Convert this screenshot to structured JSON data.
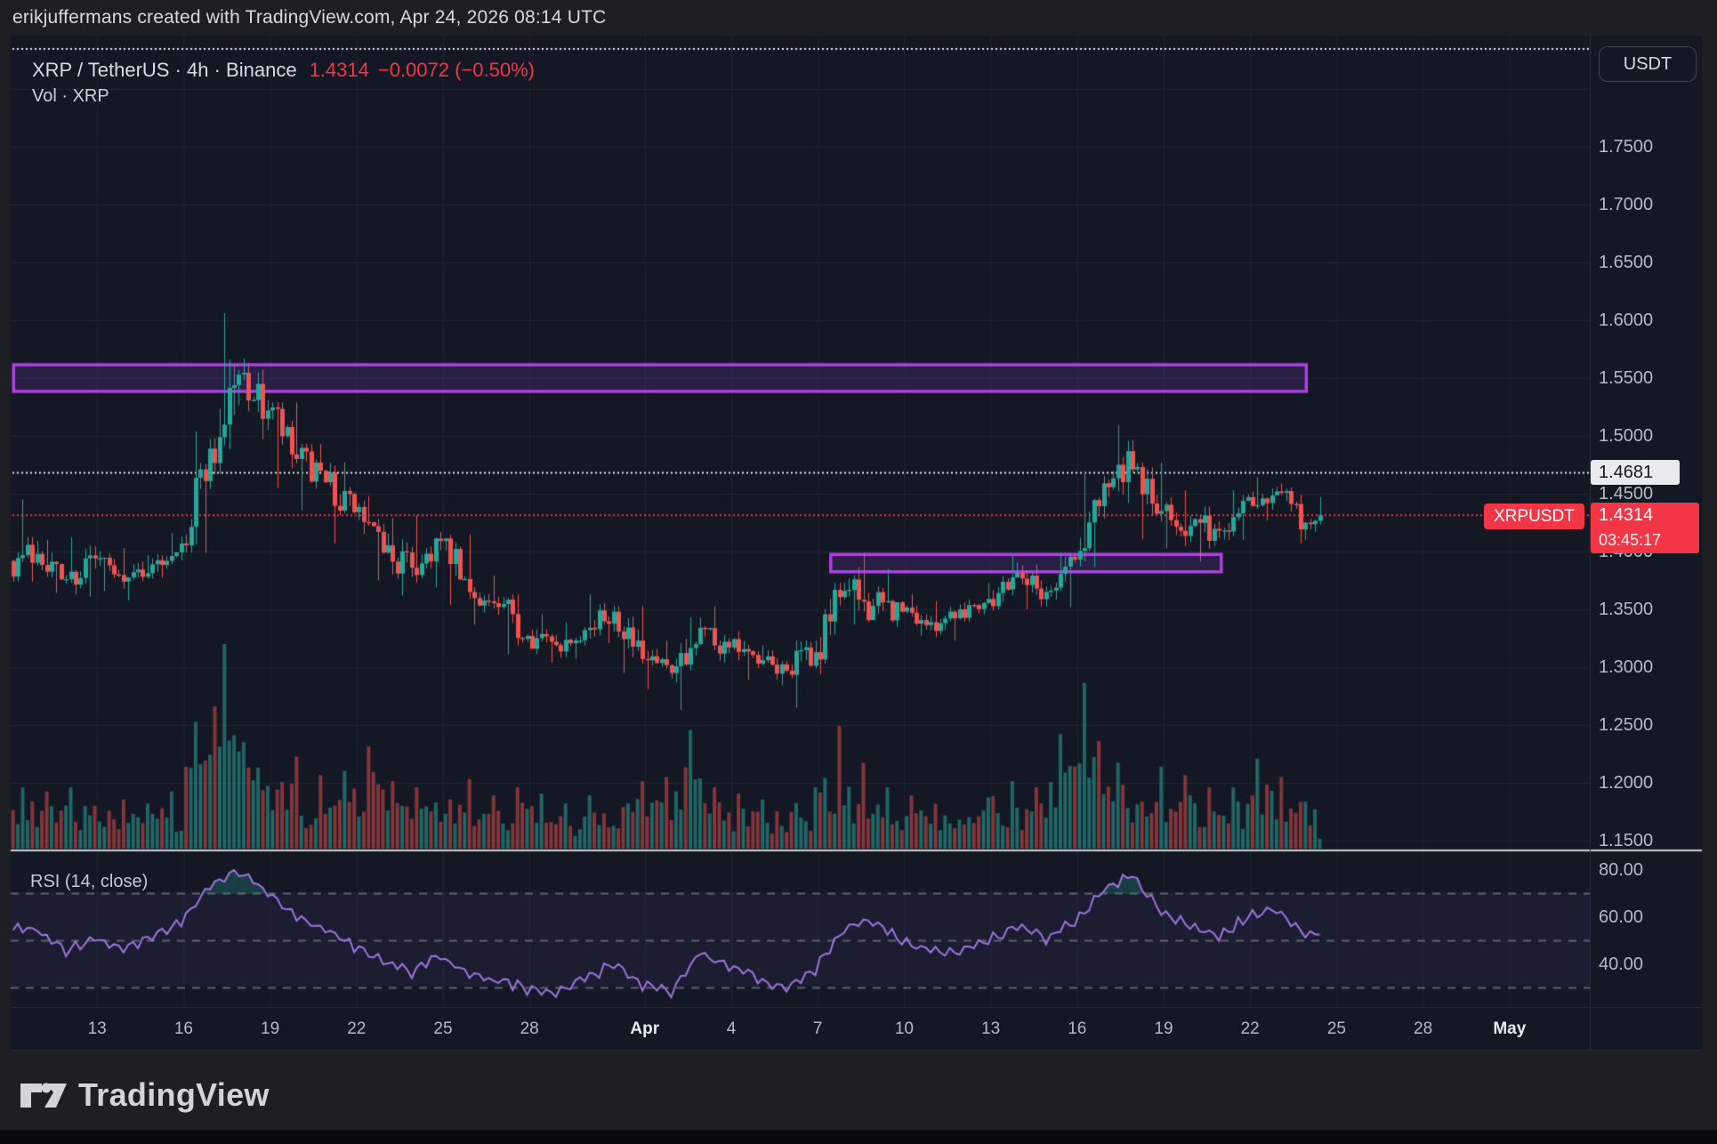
{
  "attribution": {
    "text": "erikjuffermans created with TradingView.com, Apr 24, 2026 08:14 UTC"
  },
  "legend": {
    "symbol_line": "XRP / TetherUS · 4h · Binance",
    "price": "1.4314",
    "change": "−0.0072 (−0.50%)",
    "volume_label": "Vol · XRP"
  },
  "currency_button": {
    "label": "USDT"
  },
  "rsi_panel": {
    "legend": "RSI (14, close)"
  },
  "footer": {
    "logo_text": "TradingView"
  },
  "colors": {
    "bg": "#141824",
    "outer_bg": "#1d1f24",
    "grid": "#1e2433",
    "up": "#26a69a",
    "down": "#ef5350",
    "vol_up": "rgba(42,167,154,0.55)",
    "vol_down": "rgba(239,83,80,0.50)",
    "accent_red": "#f23645",
    "white_line": "#e8e9ef",
    "rect_border": "#b13fe3",
    "rect_fill": "rgba(140,60,210,0.18)",
    "rsi_line": "#9d74e0",
    "rsi_band_fill": "rgba(126,87,194,0.08)",
    "rsi_dash": "#5f636e",
    "rsi_ob_fill": "rgba(38,166,154,0.28)",
    "separator": "#cdd0d6",
    "pane_border": "#2a2e39"
  },
  "chart_data": {
    "type": "candlestick",
    "symbol": "XRPUSDT",
    "exchange": "Binance",
    "interval": "4h",
    "last_price": 1.4314,
    "change": -0.0072,
    "change_pct": -0.5,
    "price_ticks": [
      {
        "label": "1.7500",
        "value": 1.75
      },
      {
        "label": "1.7000",
        "value": 1.7
      },
      {
        "label": "1.6500",
        "value": 1.65
      },
      {
        "label": "1.6000",
        "value": 1.6
      },
      {
        "label": "1.5500",
        "value": 1.55
      },
      {
        "label": "1.5000",
        "value": 1.5
      },
      {
        "label": "1.4500",
        "value": 1.45
      },
      {
        "label": "1.4000",
        "value": 1.4
      },
      {
        "label": "1.3500",
        "value": 1.35
      },
      {
        "label": "1.3000",
        "value": 1.3
      },
      {
        "label": "1.2500",
        "value": 1.25
      },
      {
        "label": "1.2000",
        "value": 1.2
      },
      {
        "label": "1.1500",
        "value": 1.15
      }
    ],
    "grid_price_values": [
      1.8,
      1.75,
      1.7,
      1.65,
      1.6,
      1.55,
      1.5,
      1.45,
      1.4,
      1.35,
      1.3,
      1.25,
      1.2,
      1.15
    ],
    "time_axis_labels": [
      {
        "label": "13",
        "day": 3
      },
      {
        "label": "16",
        "day": 6
      },
      {
        "label": "19",
        "day": 9
      },
      {
        "label": "22",
        "day": 12
      },
      {
        "label": "25",
        "day": 15
      },
      {
        "label": "28",
        "day": 18
      },
      {
        "label": "Apr",
        "day": 22,
        "bold": true
      },
      {
        "label": "4",
        "day": 25
      },
      {
        "label": "7",
        "day": 28
      },
      {
        "label": "10",
        "day": 31
      },
      {
        "label": "13",
        "day": 34
      },
      {
        "label": "16",
        "day": 37
      },
      {
        "label": "19",
        "day": 40
      },
      {
        "label": "22",
        "day": 43
      },
      {
        "label": "25",
        "day": 46
      },
      {
        "label": "28",
        "day": 49
      },
      {
        "label": "May",
        "day": 52,
        "bold": true
      }
    ],
    "days": [
      [
        "Mar 10",
        1.392,
        1.445,
        1.374,
        1.398,
        0.3
      ],
      [
        "Mar 11",
        1.398,
        1.41,
        1.364,
        1.376,
        0.28
      ],
      [
        "Mar 12",
        1.376,
        1.412,
        1.361,
        1.394,
        0.3
      ],
      [
        "Mar 13",
        1.394,
        1.403,
        1.366,
        1.374,
        0.24
      ],
      [
        "Mar 14",
        1.374,
        1.397,
        1.358,
        1.389,
        0.22
      ],
      [
        "Mar 15",
        1.389,
        1.416,
        1.377,
        1.407,
        0.28
      ],
      [
        "Mar 16",
        1.407,
        1.504,
        1.399,
        1.489,
        0.62
      ],
      [
        "Mar 17",
        1.489,
        1.606,
        1.467,
        1.553,
        1.0
      ],
      [
        "Mar 18",
        1.553,
        1.567,
        1.497,
        1.522,
        0.52
      ],
      [
        "Mar 19",
        1.522,
        1.529,
        1.455,
        1.48,
        0.45
      ],
      [
        "Mar 20",
        1.48,
        1.493,
        1.436,
        1.46,
        0.36
      ],
      [
        "Mar 21",
        1.46,
        1.477,
        1.407,
        1.434,
        0.38
      ],
      [
        "Mar 22",
        1.434,
        1.448,
        1.375,
        1.399,
        0.5
      ],
      [
        "Mar 23",
        1.399,
        1.429,
        1.362,
        1.386,
        0.33
      ],
      [
        "Mar 24",
        1.386,
        1.431,
        1.369,
        1.409,
        0.3
      ],
      [
        "Mar 25",
        1.409,
        1.415,
        1.354,
        1.365,
        0.34
      ],
      [
        "Mar 26",
        1.365,
        1.379,
        1.337,
        1.352,
        0.26
      ],
      [
        "Mar 27",
        1.352,
        1.363,
        1.311,
        1.327,
        0.3
      ],
      [
        "Mar 28",
        1.327,
        1.346,
        1.304,
        1.319,
        0.27
      ],
      [
        "Mar 29",
        1.319,
        1.339,
        1.307,
        1.332,
        0.22
      ],
      [
        "Mar 30",
        1.332,
        1.363,
        1.321,
        1.348,
        0.26
      ],
      [
        "Mar 31",
        1.348,
        1.353,
        1.295,
        1.307,
        0.33
      ],
      [
        "Apr 1",
        1.307,
        1.323,
        1.281,
        1.295,
        0.35
      ],
      [
        "Apr 2",
        1.295,
        1.343,
        1.263,
        1.334,
        0.58
      ],
      [
        "Apr 3",
        1.334,
        1.353,
        1.304,
        1.317,
        0.3
      ],
      [
        "Apr 4",
        1.317,
        1.331,
        1.289,
        1.303,
        0.27
      ],
      [
        "Apr 5",
        1.303,
        1.319,
        1.284,
        1.297,
        0.24
      ],
      [
        "Apr 6",
        1.297,
        1.323,
        1.265,
        1.313,
        0.3
      ],
      [
        "Apr 7",
        1.313,
        1.373,
        1.294,
        1.366,
        0.6
      ],
      [
        "Apr 8",
        1.366,
        1.399,
        1.337,
        1.353,
        0.42
      ],
      [
        "Apr 9",
        1.353,
        1.385,
        1.335,
        1.348,
        0.3
      ],
      [
        "Apr 10",
        1.348,
        1.363,
        1.327,
        1.339,
        0.26
      ],
      [
        "Apr 11",
        1.339,
        1.357,
        1.323,
        1.35,
        0.22
      ],
      [
        "Apr 12",
        1.35,
        1.373,
        1.339,
        1.359,
        0.25
      ],
      [
        "Apr 13",
        1.359,
        1.397,
        1.349,
        1.382,
        0.33
      ],
      [
        "Apr 14",
        1.382,
        1.389,
        1.35,
        1.365,
        0.3
      ],
      [
        "Apr 15",
        1.365,
        1.399,
        1.352,
        1.393,
        0.56
      ],
      [
        "Apr 16",
        1.393,
        1.469,
        1.387,
        1.459,
        0.81
      ],
      [
        "Apr 17",
        1.459,
        1.509,
        1.442,
        1.471,
        0.42
      ],
      [
        "Apr 18",
        1.471,
        1.477,
        1.411,
        1.435,
        0.4
      ],
      [
        "Apr 19",
        1.435,
        1.453,
        1.403,
        1.422,
        0.36
      ],
      [
        "Apr 20",
        1.422,
        1.439,
        1.391,
        1.418,
        0.3
      ],
      [
        "Apr 21",
        1.418,
        1.453,
        1.41,
        1.447,
        0.3
      ],
      [
        "Apr 22",
        1.447,
        1.464,
        1.427,
        1.452,
        0.44
      ],
      [
        "Apr 23",
        1.452,
        1.459,
        1.407,
        1.425,
        0.35
      ],
      [
        "Apr 24",
        1.425,
        1.447,
        1.417,
        1.4314,
        0.26
      ]
    ],
    "rsi": {
      "period": 14,
      "source": "close",
      "ticks": [
        {
          "label": "80.00",
          "value": 80
        },
        {
          "label": "60.00",
          "value": 60
        },
        {
          "label": "40.00",
          "value": 40
        }
      ],
      "levels": [
        70,
        50,
        30
      ],
      "daily_values": [
        55,
        46,
        51,
        46,
        52,
        58,
        73,
        80,
        70,
        60,
        55,
        48,
        41,
        37,
        44,
        35,
        33,
        30,
        28,
        34,
        40,
        31,
        28,
        45,
        39,
        34,
        30,
        38,
        56,
        58,
        50,
        46,
        45,
        50,
        56,
        51,
        58,
        72,
        78,
        62,
        57,
        52,
        60,
        63,
        53,
        52
      ]
    },
    "rectangles": [
      {
        "from_day": 0.1,
        "to_day": 44.95,
        "price_top": 1.5615,
        "price_bottom": 1.5385
      },
      {
        "from_day": 28.45,
        "to_day": 42.0,
        "price_top": 1.3975,
        "price_bottom": 1.3825
      }
    ],
    "price_lines": [
      {
        "price": 1.4681,
        "style": "dotted",
        "color": "white",
        "axis_label": "1.4681"
      },
      {
        "price": 1.4314,
        "style": "dotted",
        "color": "red",
        "axis_label": "1.4314",
        "tag": "XRPUSDT",
        "countdown": "03:45:17"
      },
      {
        "price": 1.835,
        "style": "dotted",
        "color": "white",
        "note": "clamped to pane top"
      }
    ]
  }
}
